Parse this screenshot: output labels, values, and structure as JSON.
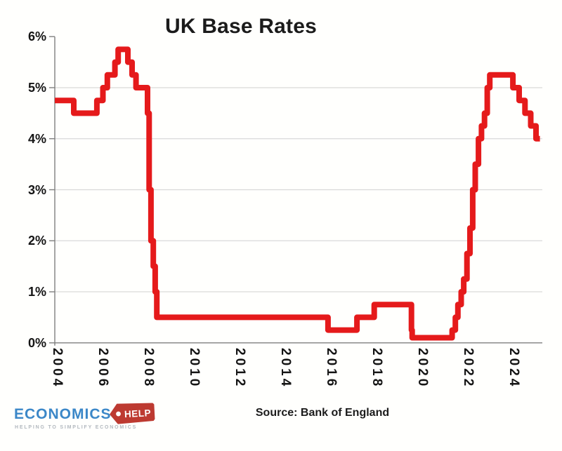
{
  "title": "UK Base Rates",
  "source": "Source: Bank of England",
  "logo": {
    "brand": "ECONOMICS",
    "tag": "HELP",
    "tagline": "HELPING TO SIMPLIFY ECONOMICS",
    "brand_color": "#3b87c8",
    "tag_color": "#bd3a31",
    "tagline_color": "#b2b8be"
  },
  "chart_data": {
    "type": "line",
    "subtype": "step",
    "title": "UK Base Rates",
    "xlabel": "",
    "ylabel": "",
    "ylim": [
      0,
      6
    ],
    "xlim": [
      2004.75,
      2025.75
    ],
    "grid": "horizontal gridlines at 1%-5%",
    "legend": "none",
    "line_color": "#e51a1b",
    "y_tick_labels": [
      "0%",
      "1%",
      "2%",
      "3%",
      "4%",
      "5%",
      "6%"
    ],
    "x_tick_labels": [
      "2004",
      "2006",
      "2008",
      "2010",
      "2012",
      "2014",
      "2016",
      "2018",
      "2020",
      "2022",
      "2024"
    ],
    "series": [
      {
        "name": "UK base rate (%)",
        "end_t": 2025.75,
        "steps": [
          {
            "date": "Aug 2004",
            "t": 2004.58,
            "rate": 4.75
          },
          {
            "date": "Aug 2005",
            "t": 2005.58,
            "rate": 4.5
          },
          {
            "date": "Aug 2006",
            "t": 2006.58,
            "rate": 4.75
          },
          {
            "date": "Nov 2006",
            "t": 2006.84,
            "rate": 5.0
          },
          {
            "date": "Jan 2007",
            "t": 2007.03,
            "rate": 5.25
          },
          {
            "date": "May 2007",
            "t": 2007.36,
            "rate": 5.5
          },
          {
            "date": "Jul 2007",
            "t": 2007.5,
            "rate": 5.75
          },
          {
            "date": "Dec 2007",
            "t": 2007.92,
            "rate": 5.5
          },
          {
            "date": "Feb 2008",
            "t": 2008.1,
            "rate": 5.25
          },
          {
            "date": "Apr 2008",
            "t": 2008.27,
            "rate": 5.0
          },
          {
            "date": "Oct 2008",
            "t": 2008.77,
            "rate": 4.5
          },
          {
            "date": "Nov 2008",
            "t": 2008.84,
            "rate": 3.0
          },
          {
            "date": "Dec 2008",
            "t": 2008.92,
            "rate": 2.0
          },
          {
            "date": "Jan 2009",
            "t": 2009.02,
            "rate": 1.5
          },
          {
            "date": "Feb 2009",
            "t": 2009.1,
            "rate": 1.0
          },
          {
            "date": "Mar 2009",
            "t": 2009.17,
            "rate": 0.5
          },
          {
            "date": "Aug 2016",
            "t": 2016.58,
            "rate": 0.25
          },
          {
            "date": "Nov 2017",
            "t": 2017.83,
            "rate": 0.5
          },
          {
            "date": "Aug 2018",
            "t": 2018.58,
            "rate": 0.75
          },
          {
            "date": "Mar 2020",
            "t": 2020.19,
            "rate": 0.25
          },
          {
            "date": "Mar 2020",
            "t": 2020.22,
            "rate": 0.1
          },
          {
            "date": "Dec 2021",
            "t": 2021.95,
            "rate": 0.25
          },
          {
            "date": "Feb 2022",
            "t": 2022.09,
            "rate": 0.5
          },
          {
            "date": "Mar 2022",
            "t": 2022.2,
            "rate": 0.75
          },
          {
            "date": "May 2022",
            "t": 2022.34,
            "rate": 1.0
          },
          {
            "date": "Jun 2022",
            "t": 2022.45,
            "rate": 1.25
          },
          {
            "date": "Aug 2022",
            "t": 2022.59,
            "rate": 1.75
          },
          {
            "date": "Sep 2022",
            "t": 2022.72,
            "rate": 2.25
          },
          {
            "date": "Nov 2022",
            "t": 2022.84,
            "rate": 3.0
          },
          {
            "date": "Dec 2022",
            "t": 2022.95,
            "rate": 3.5
          },
          {
            "date": "Feb 2023",
            "t": 2023.09,
            "rate": 4.0
          },
          {
            "date": "Mar 2023",
            "t": 2023.22,
            "rate": 4.25
          },
          {
            "date": "May 2023",
            "t": 2023.35,
            "rate": 4.5
          },
          {
            "date": "Jun 2023",
            "t": 2023.47,
            "rate": 5.0
          },
          {
            "date": "Aug 2023",
            "t": 2023.58,
            "rate": 5.25
          },
          {
            "date": "Aug 2024",
            "t": 2024.58,
            "rate": 5.0
          },
          {
            "date": "Nov 2024",
            "t": 2024.85,
            "rate": 4.75
          },
          {
            "date": "Feb 2025",
            "t": 2025.1,
            "rate": 4.5
          },
          {
            "date": "May 2025",
            "t": 2025.35,
            "rate": 4.25
          },
          {
            "date": "Aug 2025",
            "t": 2025.58,
            "rate": 4.0
          }
        ]
      }
    ]
  }
}
